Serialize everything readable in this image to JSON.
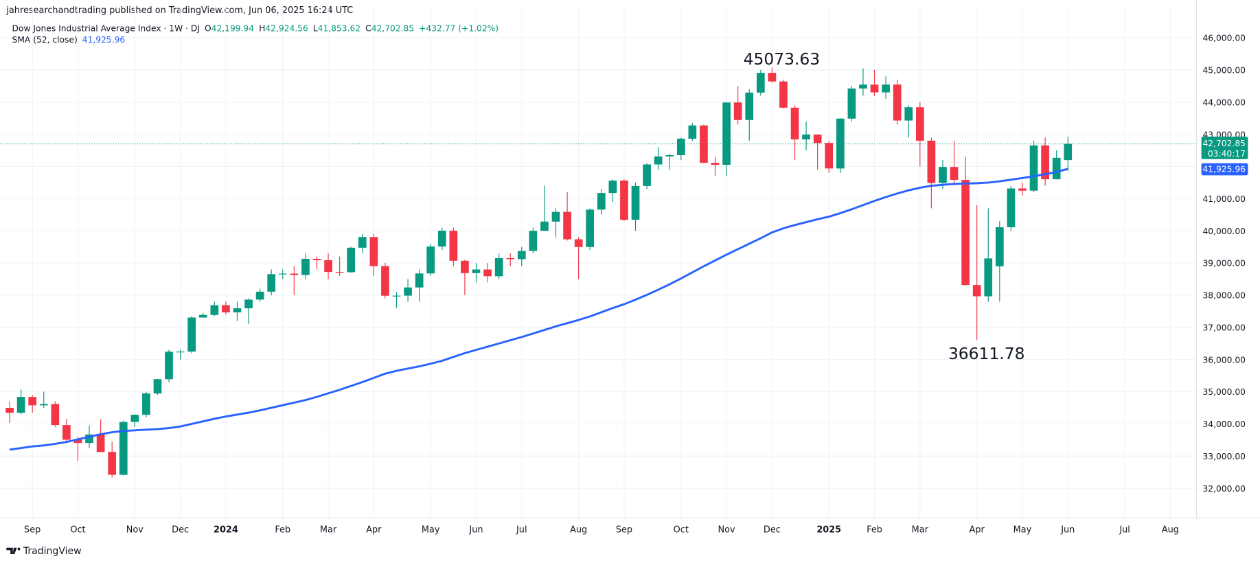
{
  "header": {
    "publisher": "jahresearchandtrading published on TradingView.com, Jun 06, 2025 16:24 UTC",
    "footer": "TradingView"
  },
  "chart_data": {
    "type": "candlestick",
    "symbol_label": "Dow Jones Industrial Average Index · 1W · DJ",
    "ohlc_legend": [
      [
        "O",
        "42,199.94"
      ],
      [
        "H",
        "42,924.56"
      ],
      [
        "L",
        "41,853.62"
      ],
      [
        "C",
        "42,702.85"
      ]
    ],
    "change": "+432.77 (+1.02%)",
    "categories": [
      null,
      null,
      "Sep",
      null,
      null,
      null,
      "Oct",
      null,
      null,
      null,
      null,
      "Nov",
      null,
      null,
      null,
      "Dec",
      null,
      null,
      null,
      "2024",
      null,
      null,
      null,
      null,
      "Feb",
      null,
      null,
      null,
      "Mar",
      null,
      null,
      null,
      "Apr",
      null,
      null,
      null,
      null,
      "May",
      null,
      null,
      null,
      "Jun",
      null,
      null,
      null,
      "Jul",
      null,
      null,
      null,
      null,
      "Aug",
      null,
      null,
      null,
      "Sep",
      null,
      null,
      null,
      null,
      "Oct",
      null,
      null,
      null,
      "Nov",
      null,
      null,
      null,
      "Dec",
      null,
      null,
      null,
      null,
      "2025",
      null,
      null,
      null,
      "Feb",
      null,
      null,
      null,
      "Mar",
      null,
      null,
      null,
      null,
      "Apr",
      null,
      null,
      null,
      "May",
      null,
      null,
      null,
      "Jun",
      null,
      null,
      null,
      null,
      "Jul",
      null,
      null,
      null,
      "Aug",
      null,
      null
    ],
    "open": [
      34500,
      34346,
      34838,
      34577,
      34618,
      33964,
      33507,
      33407,
      33670,
      33127,
      32418,
      34061,
      34283,
      34947,
      35390,
      36245,
      36248,
      37306,
      37386,
      37690,
      37466,
      37593,
      37863,
      38109,
      38654,
      38671,
      38628,
      39131,
      39087,
      38723,
      38714,
      39475,
      39807,
      38904,
      37983,
      37986,
      38240,
      38676,
      39513,
      40004,
      39070,
      38686,
      38799,
      38589,
      39150,
      39119,
      39375,
      40001,
      40288,
      40589,
      39737,
      39497,
      40660,
      41175,
      41563,
      40345,
      41394,
      42063,
      42313,
      42352,
      42864,
      43276,
      42114,
      42052,
      43989,
      43445,
      44297,
      44911,
      44643,
      43828,
      42841,
      42992,
      42732,
      41938,
      43488,
      44424,
      44545,
      44303,
      44546,
      43428,
      43841,
      42802,
      41488,
      41985,
      41583,
      38315,
      37966,
      38900,
      40113,
      41317,
      41249,
      42655,
      41603,
      42199.94,
      null,
      null,
      null,
      null,
      null,
      null,
      null,
      null,
      null,
      null,
      null
    ],
    "high": [
      34700,
      35070,
      34900,
      35000,
      34700,
      34150,
      33600,
      33950,
      34150,
      33450,
      34100,
      34300,
      35000,
      35400,
      36300,
      36300,
      37350,
      37450,
      37800,
      37800,
      37800,
      37900,
      38200,
      38800,
      38800,
      38900,
      39300,
      39200,
      39300,
      39200,
      39500,
      39900,
      39900,
      39000,
      38100,
      38500,
      38800,
      39600,
      40100,
      40100,
      39100,
      39000,
      39000,
      39300,
      39300,
      39500,
      40100,
      41400,
      40700,
      41200,
      39800,
      40700,
      41300,
      41600,
      41600,
      41500,
      42100,
      42600,
      42400,
      42900,
      43350,
      43300,
      42300,
      44000,
      44500,
      44400,
      45000,
      45073.63,
      44700,
      43900,
      43400,
      43000,
      42800,
      43500,
      44500,
      45050,
      45000,
      44800,
      44700,
      43900,
      44000,
      42900,
      42200,
      42800,
      42300,
      40800,
      40700,
      40300,
      41400,
      41500,
      42800,
      42900,
      42500,
      42924.56,
      null,
      null,
      null,
      null,
      null,
      null,
      null,
      null,
      null,
      null,
      null
    ],
    "low": [
      34030,
      34300,
      34350,
      34500,
      33900,
      33450,
      32850,
      33250,
      33120,
      32330,
      32400,
      33900,
      34200,
      34900,
      35300,
      36000,
      36200,
      37300,
      37350,
      37400,
      37200,
      37100,
      37800,
      38000,
      38500,
      38000,
      38500,
      38800,
      38500,
      38600,
      38700,
      39300,
      38600,
      37900,
      37600,
      37800,
      37800,
      38600,
      39400,
      38900,
      38000,
      38400,
      38400,
      38500,
      38900,
      38900,
      39300,
      40000,
      39800,
      39700,
      38500,
      39400,
      40500,
      40900,
      40300,
      40000,
      41300,
      41900,
      41900,
      42200,
      42800,
      42100,
      41700,
      41700,
      43300,
      42800,
      44200,
      44600,
      43800,
      42200,
      42500,
      41900,
      41800,
      41800,
      43400,
      44200,
      44200,
      44100,
      43300,
      42900,
      42000,
      40700,
      41300,
      41400,
      38300,
      36611.78,
      37800,
      37800,
      40000,
      41100,
      41200,
      41400,
      41600,
      41853.62,
      null,
      null,
      null,
      null,
      null,
      null,
      null,
      null,
      null,
      null,
      null
    ],
    "close": [
      34346,
      34838,
      34577,
      34618,
      33964,
      33507,
      33407,
      33670,
      33127,
      32418,
      34061,
      34283,
      34947,
      35390,
      36245,
      36248,
      37306,
      37386,
      37690,
      37466,
      37593,
      37863,
      38109,
      38654,
      38671,
      38628,
      39131,
      39087,
      38723,
      38714,
      39475,
      39807,
      38904,
      37983,
      37986,
      38240,
      38676,
      39513,
      40004,
      39070,
      38686,
      38799,
      38589,
      39150,
      39119,
      39375,
      40001,
      40288,
      40589,
      39737,
      39497,
      40660,
      41175,
      41563,
      40345,
      41394,
      42063,
      42313,
      42352,
      42864,
      43276,
      42114,
      42052,
      43989,
      43445,
      44297,
      44911,
      44643,
      43828,
      42841,
      42992,
      42732,
      41938,
      43488,
      44424,
      44545,
      44303,
      44546,
      43428,
      43841,
      42802,
      41488,
      41985,
      41583,
      38315,
      37966,
      39142,
      40113,
      41317,
      41249,
      42655,
      41603,
      42270,
      42702.85,
      null,
      null,
      null,
      null,
      null,
      null,
      null,
      null,
      null,
      null,
      null
    ],
    "up_color": "#089981",
    "down_color": "#f23645",
    "sma": {
      "name": "SMA (52, close)",
      "color": "#2962ff",
      "values": [
        33200,
        33250,
        33300,
        33330,
        33380,
        33440,
        33520,
        33600,
        33680,
        33740,
        33780,
        33800,
        33820,
        33840,
        33870,
        33920,
        34000,
        34080,
        34160,
        34230,
        34290,
        34350,
        34420,
        34500,
        34580,
        34660,
        34740,
        34840,
        34950,
        35060,
        35180,
        35300,
        35430,
        35560,
        35650,
        35720,
        35790,
        35870,
        35960,
        36080,
        36200,
        36300,
        36400,
        36500,
        36600,
        36700,
        36810,
        36920,
        37030,
        37130,
        37230,
        37340,
        37470,
        37600,
        37720,
        37860,
        38010,
        38170,
        38340,
        38520,
        38710,
        38900,
        39080,
        39260,
        39430,
        39600,
        39770,
        39950,
        40080,
        40180,
        40270,
        40360,
        40440,
        40550,
        40670,
        40800,
        40930,
        41050,
        41160,
        41260,
        41340,
        41400,
        41430,
        41460,
        41470,
        41480,
        41500,
        41540,
        41590,
        41640,
        41700,
        41760,
        41830,
        41925.96,
        null,
        null,
        null,
        null,
        null,
        null,
        null,
        null,
        null,
        null,
        null
      ]
    },
    "last_price": {
      "value": 42702.85,
      "label": "42,702.85"
    },
    "countdown": "03:40:17",
    "sma_last": {
      "value": 41925.96,
      "label": "41,925.96"
    },
    "sma_legend": "41,925.96",
    "annotations": [
      {
        "value": 45073.63,
        "label": "45073.63"
      },
      {
        "value": 36611.78,
        "label": "36611.78"
      }
    ],
    "ylim": [
      31076,
      46973
    ],
    "yticks": [
      {
        "value": 32000,
        "label": "32,000.00"
      },
      {
        "value": 33000,
        "label": "33,000.00"
      },
      {
        "value": 34000,
        "label": "34,000.00"
      },
      {
        "value": 35000,
        "label": "35,000.00"
      },
      {
        "value": 36000,
        "label": "36,000.00"
      },
      {
        "value": 37000,
        "label": "37,000.00"
      },
      {
        "value": 38000,
        "label": "38,000.00"
      },
      {
        "value": 39000,
        "label": "39,000.00"
      },
      {
        "value": 40000,
        "label": "40,000.00"
      },
      {
        "value": 41000,
        "label": "41,000.00"
      },
      {
        "value": 42000,
        "label": "42,000.00"
      },
      {
        "value": 43000,
        "label": "43,000.00"
      },
      {
        "value": 44000,
        "label": "44,000.00"
      },
      {
        "value": 45000,
        "label": "45,000.00"
      },
      {
        "value": 46000,
        "label": "46,000.00"
      }
    ],
    "grid": true
  }
}
